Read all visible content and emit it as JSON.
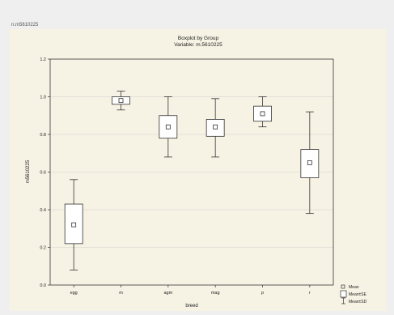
{
  "window": {
    "top_label": "n.m5610225"
  },
  "chart_data": {
    "type": "boxplot",
    "title": "Boxplot by Group",
    "subtitle": "Variable: m.5610225",
    "xlabel": "breed",
    "ylabel": "m5610225",
    "ylim": [
      0.0,
      1.2
    ],
    "yticks": [
      0.0,
      0.2,
      0.4,
      0.6,
      0.8,
      1.0,
      1.2
    ],
    "ytick_labels": [
      "0.0",
      "0.2",
      "0.4",
      "0.6",
      "0.8",
      "1.0",
      "1.2"
    ],
    "grid": true,
    "categories": [
      "egg",
      "m",
      "agm",
      "mag",
      "p",
      "r"
    ],
    "series": [
      {
        "category": "egg",
        "mean": 0.32,
        "box_low": 0.22,
        "box_high": 0.43,
        "whisker_low": 0.08,
        "whisker_high": 0.56
      },
      {
        "category": "m",
        "mean": 0.98,
        "box_low": 0.96,
        "box_high": 1.0,
        "whisker_low": 0.93,
        "whisker_high": 1.03
      },
      {
        "category": "agm",
        "mean": 0.84,
        "box_low": 0.78,
        "box_high": 0.9,
        "whisker_low": 0.68,
        "whisker_high": 1.0
      },
      {
        "category": "mag",
        "mean": 0.84,
        "box_low": 0.79,
        "box_high": 0.88,
        "whisker_low": 0.68,
        "whisker_high": 0.99
      },
      {
        "category": "p",
        "mean": 0.91,
        "box_low": 0.87,
        "box_high": 0.95,
        "whisker_low": 0.84,
        "whisker_high": 1.0
      },
      {
        "category": "r",
        "mean": 0.65,
        "box_low": 0.57,
        "box_high": 0.72,
        "whisker_low": 0.38,
        "whisker_high": 0.92
      }
    ],
    "legend": {
      "placement": "bottom-right",
      "entries": [
        "Mean",
        "Mean±SE",
        "Mean±SD"
      ]
    }
  }
}
